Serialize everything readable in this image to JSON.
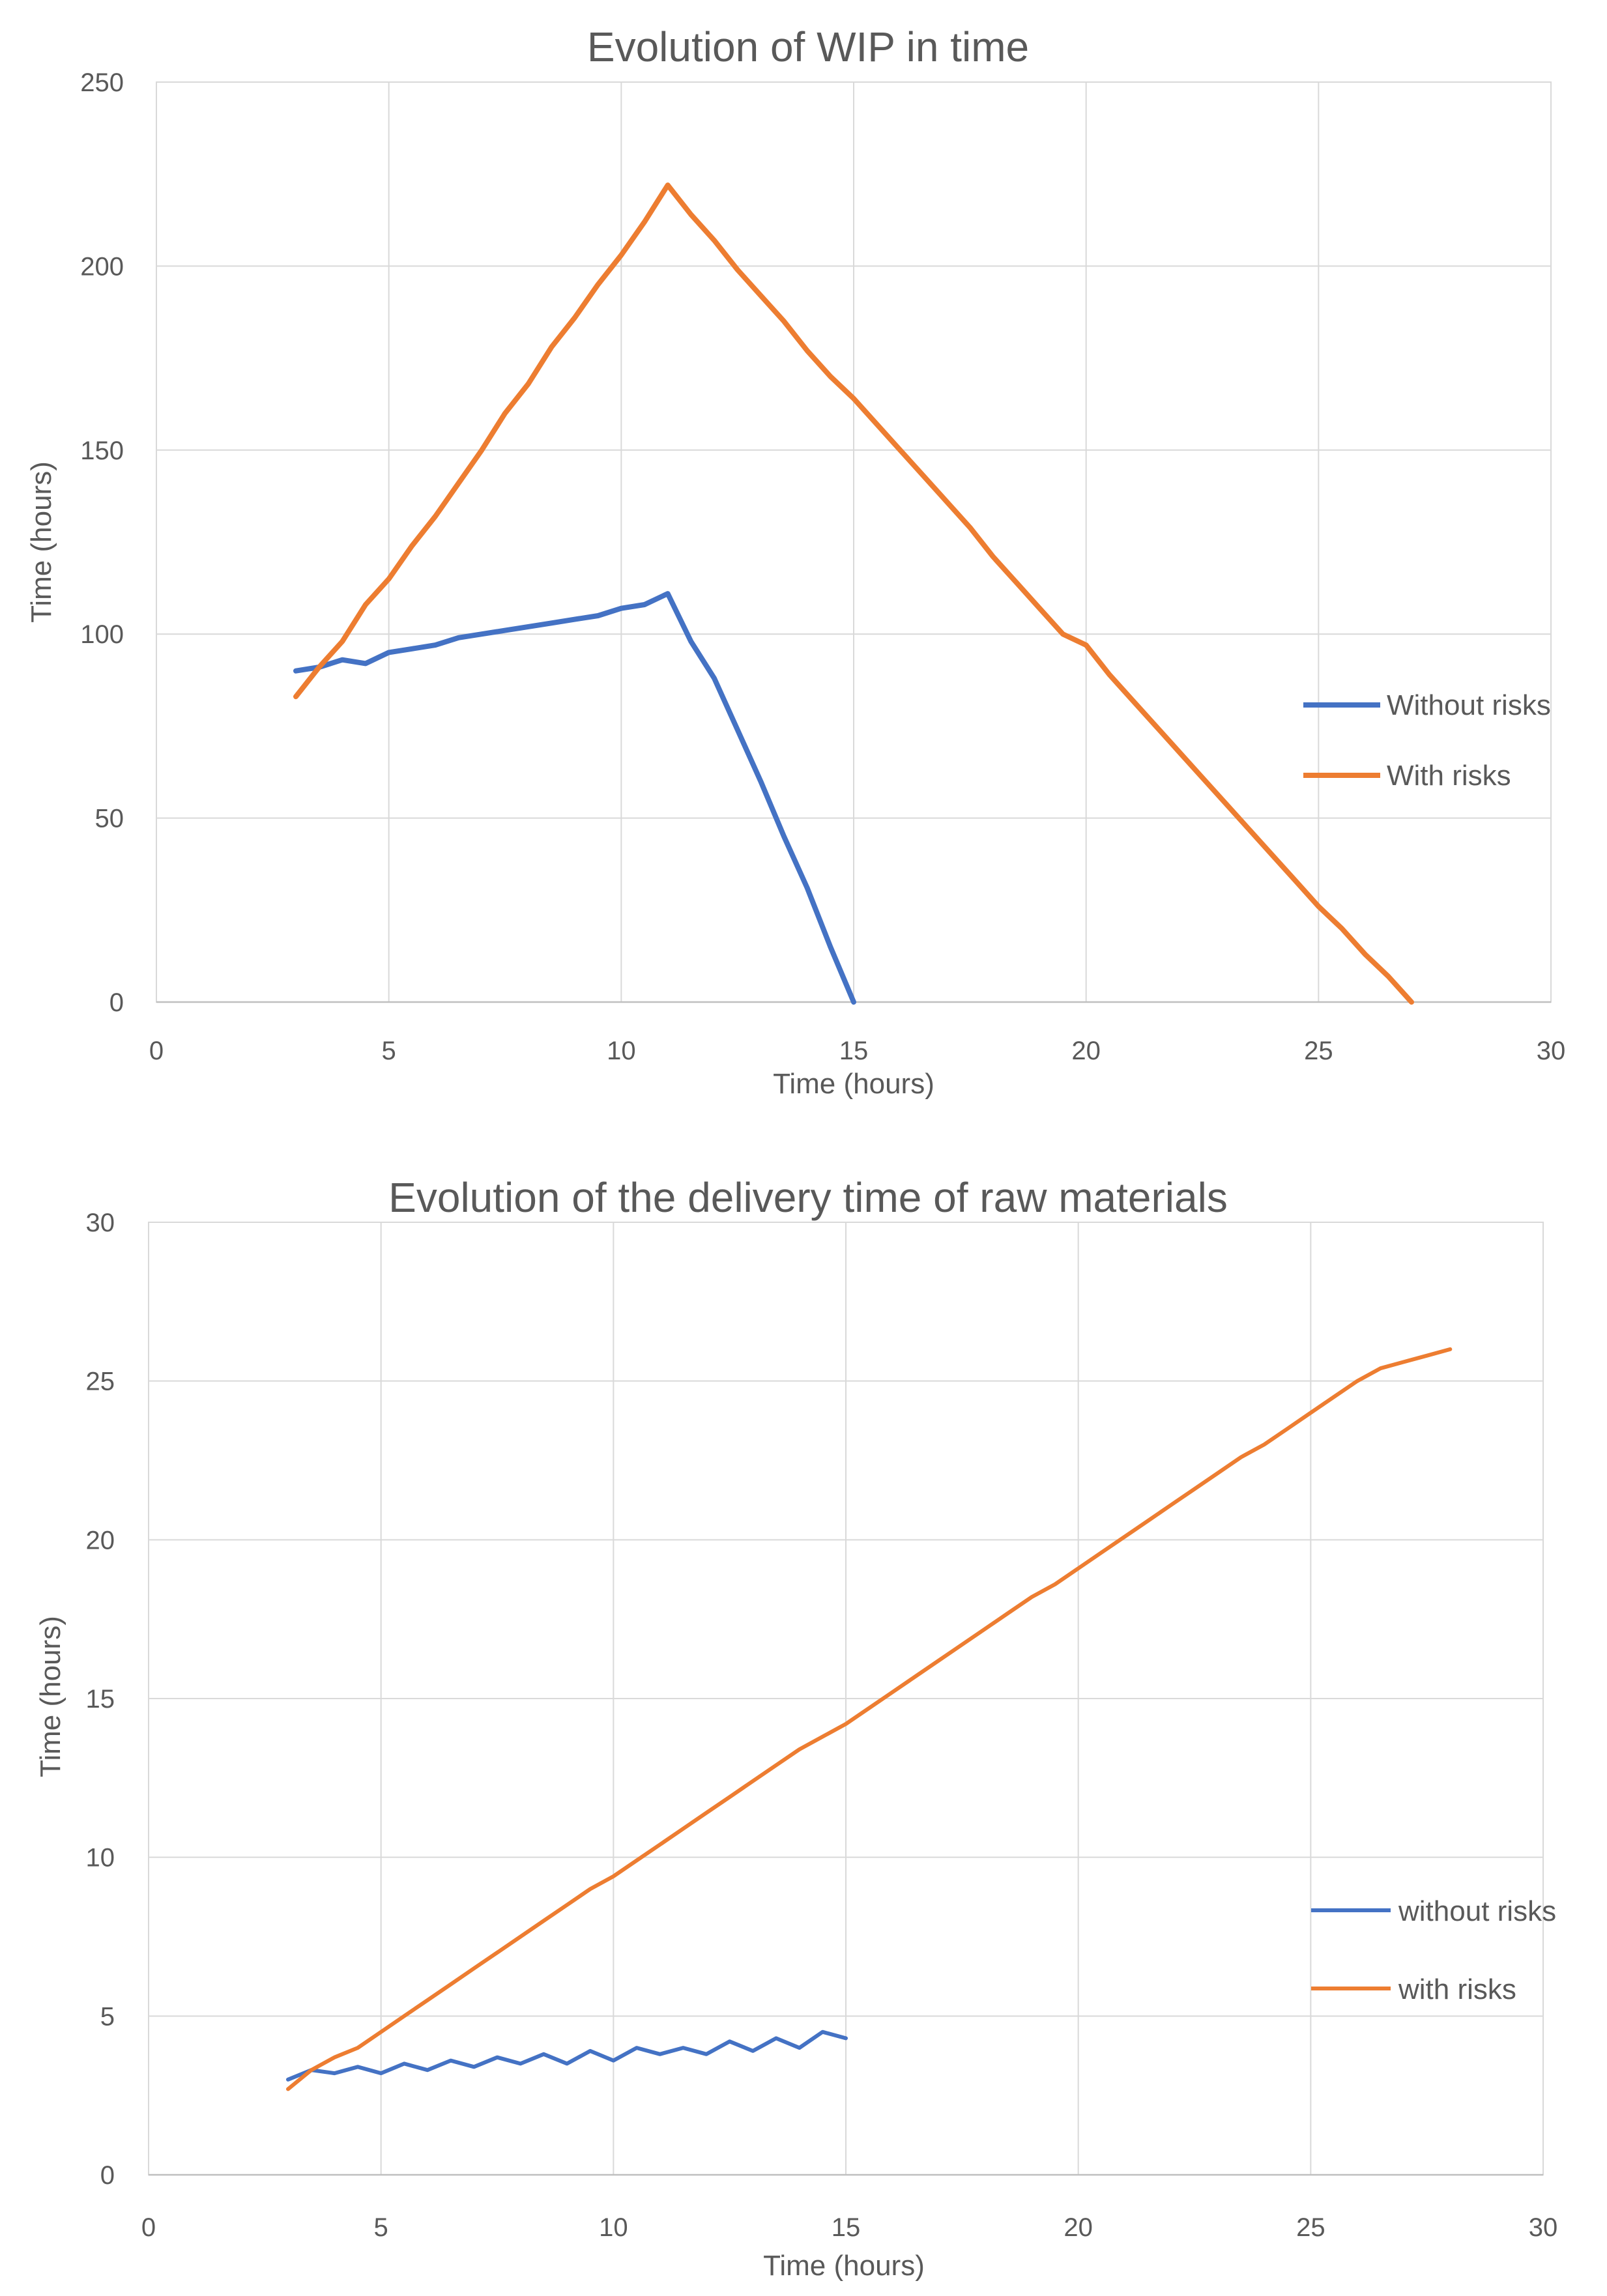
{
  "chart_data": [
    {
      "type": "line",
      "title": "Evolution of WIP in time",
      "xlabel": "Time (hours)",
      "ylabel": "Time (hours)",
      "xlim": [
        0,
        30
      ],
      "ylim": [
        0,
        250
      ],
      "xticks": [
        0,
        5,
        10,
        15,
        20,
        25,
        30
      ],
      "yticks": [
        0,
        50,
        100,
        150,
        200,
        250
      ],
      "grid": true,
      "legend_position": "right",
      "series": [
        {
          "name": "Without risks",
          "color": "#4472c4",
          "points": [
            [
              3.0,
              90
            ],
            [
              3.5,
              91
            ],
            [
              4.0,
              93
            ],
            [
              4.5,
              92
            ],
            [
              5.0,
              95
            ],
            [
              5.5,
              96
            ],
            [
              6.0,
              97
            ],
            [
              6.5,
              99
            ],
            [
              7.0,
              100
            ],
            [
              7.5,
              101
            ],
            [
              8.0,
              102
            ],
            [
              8.5,
              103
            ],
            [
              9.0,
              104
            ],
            [
              9.5,
              105
            ],
            [
              10.0,
              107
            ],
            [
              10.5,
              108
            ],
            [
              11.0,
              111
            ],
            [
              11.5,
              98
            ],
            [
              12.0,
              88
            ],
            [
              12.5,
              74
            ],
            [
              13.0,
              60
            ],
            [
              13.5,
              45
            ],
            [
              14.0,
              31
            ],
            [
              14.5,
              15
            ],
            [
              15.0,
              0
            ]
          ]
        },
        {
          "name": "With risks",
          "color": "#ed7d31",
          "points": [
            [
              3.0,
              83
            ],
            [
              3.5,
              91
            ],
            [
              4.0,
              98
            ],
            [
              4.5,
              108
            ],
            [
              5.0,
              115
            ],
            [
              5.5,
              124
            ],
            [
              6.0,
              132
            ],
            [
              6.5,
              141
            ],
            [
              7.0,
              150
            ],
            [
              7.5,
              160
            ],
            [
              8.0,
              168
            ],
            [
              8.5,
              178
            ],
            [
              9.0,
              186
            ],
            [
              9.5,
              195
            ],
            [
              10.0,
              203
            ],
            [
              10.5,
              212
            ],
            [
              11.0,
              222
            ],
            [
              11.5,
              214
            ],
            [
              12.0,
              207
            ],
            [
              12.5,
              199
            ],
            [
              13.0,
              192
            ],
            [
              13.5,
              185
            ],
            [
              14.0,
              177
            ],
            [
              14.5,
              170
            ],
            [
              15.0,
              164
            ],
            [
              15.5,
              157
            ],
            [
              16.0,
              150
            ],
            [
              16.5,
              143
            ],
            [
              17.0,
              136
            ],
            [
              17.5,
              129
            ],
            [
              18.0,
              121
            ],
            [
              18.5,
              114
            ],
            [
              19.0,
              107
            ],
            [
              19.5,
              100
            ],
            [
              20.0,
              97
            ],
            [
              20.5,
              89
            ],
            [
              21.0,
              82
            ],
            [
              21.5,
              75
            ],
            [
              22.0,
              68
            ],
            [
              22.5,
              61
            ],
            [
              23.0,
              54
            ],
            [
              23.5,
              47
            ],
            [
              24.0,
              40
            ],
            [
              24.5,
              33
            ],
            [
              25.0,
              26
            ],
            [
              25.5,
              20
            ],
            [
              26.0,
              13
            ],
            [
              26.5,
              7
            ],
            [
              27.0,
              0
            ]
          ]
        }
      ]
    },
    {
      "type": "line",
      "title": "Evolution of the delivery time of raw materials",
      "xlabel": "Time (hours)",
      "ylabel": "Time (hours)",
      "xlim": [
        0,
        30
      ],
      "ylim": [
        0,
        30
      ],
      "xticks": [
        0,
        5,
        10,
        15,
        20,
        25,
        30
      ],
      "yticks": [
        0,
        5,
        10,
        15,
        20,
        25,
        30
      ],
      "grid": true,
      "legend_position": "right",
      "series": [
        {
          "name": "without risks",
          "color": "#4472c4",
          "points": [
            [
              3.0,
              3.0
            ],
            [
              3.5,
              3.3
            ],
            [
              4.0,
              3.2
            ],
            [
              4.5,
              3.4
            ],
            [
              5.0,
              3.2
            ],
            [
              5.5,
              3.5
            ],
            [
              6.0,
              3.3
            ],
            [
              6.5,
              3.6
            ],
            [
              7.0,
              3.4
            ],
            [
              7.5,
              3.7
            ],
            [
              8.0,
              3.5
            ],
            [
              8.5,
              3.8
            ],
            [
              9.0,
              3.5
            ],
            [
              9.5,
              3.9
            ],
            [
              10.0,
              3.6
            ],
            [
              10.5,
              4.0
            ],
            [
              11.0,
              3.8
            ],
            [
              11.5,
              4.0
            ],
            [
              12.0,
              3.8
            ],
            [
              12.5,
              4.2
            ],
            [
              13.0,
              3.9
            ],
            [
              13.5,
              4.3
            ],
            [
              14.0,
              4.0
            ],
            [
              14.5,
              4.5
            ],
            [
              15.0,
              4.3
            ]
          ]
        },
        {
          "name": "with risks",
          "color": "#ed7d31",
          "points": [
            [
              3.0,
              2.7
            ],
            [
              3.5,
              3.3
            ],
            [
              4.0,
              3.7
            ],
            [
              4.5,
              4.0
            ],
            [
              5.0,
              4.5
            ],
            [
              5.5,
              5.0
            ],
            [
              6.0,
              5.5
            ],
            [
              6.5,
              6.0
            ],
            [
              7.0,
              6.5
            ],
            [
              7.5,
              7.0
            ],
            [
              8.0,
              7.5
            ],
            [
              8.5,
              8.0
            ],
            [
              9.0,
              8.5
            ],
            [
              9.5,
              9.0
            ],
            [
              10.0,
              9.4
            ],
            [
              10.5,
              9.9
            ],
            [
              11.0,
              10.4
            ],
            [
              11.5,
              10.9
            ],
            [
              12.0,
              11.4
            ],
            [
              12.5,
              11.9
            ],
            [
              13.0,
              12.4
            ],
            [
              13.5,
              12.9
            ],
            [
              14.0,
              13.4
            ],
            [
              14.5,
              13.8
            ],
            [
              15.0,
              14.2
            ],
            [
              15.5,
              14.7
            ],
            [
              16.0,
              15.2
            ],
            [
              16.5,
              15.7
            ],
            [
              17.0,
              16.2
            ],
            [
              17.5,
              16.7
            ],
            [
              18.0,
              17.2
            ],
            [
              18.5,
              17.7
            ],
            [
              19.0,
              18.2
            ],
            [
              19.5,
              18.6
            ],
            [
              20.0,
              19.1
            ],
            [
              20.5,
              19.6
            ],
            [
              21.0,
              20.1
            ],
            [
              21.5,
              20.6
            ],
            [
              22.0,
              21.1
            ],
            [
              22.5,
              21.6
            ],
            [
              23.0,
              22.1
            ],
            [
              23.5,
              22.6
            ],
            [
              24.0,
              23.0
            ],
            [
              24.5,
              23.5
            ],
            [
              25.0,
              24.0
            ],
            [
              25.5,
              24.5
            ],
            [
              26.0,
              25.0
            ],
            [
              26.5,
              25.4
            ],
            [
              27.0,
              25.6
            ],
            [
              27.5,
              25.8
            ],
            [
              28.0,
              26.0
            ]
          ]
        }
      ]
    }
  ]
}
